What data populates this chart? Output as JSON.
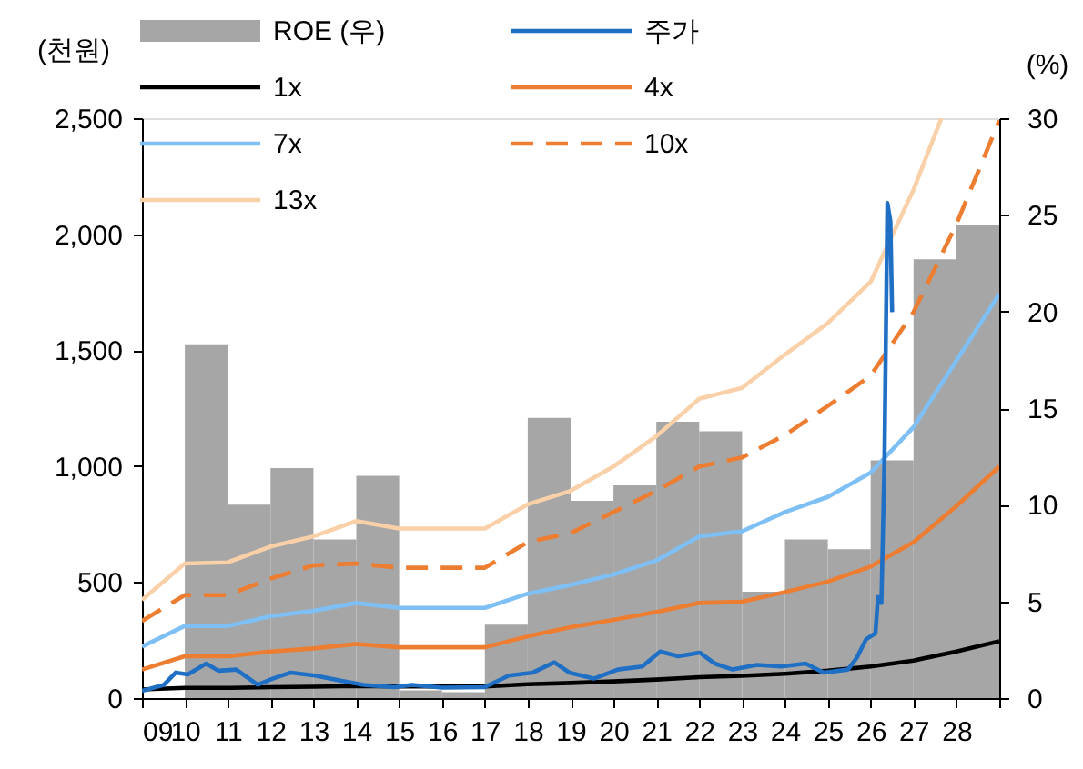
{
  "chart_data": {
    "type": "line",
    "ylabel": "(천원)",
    "y2label": "(%)",
    "legend": "top",
    "grid": false,
    "xlim": [
      2009,
      2029
    ],
    "xticks": [
      {
        "value": 2009,
        "label": "09"
      },
      {
        "value": 2010,
        "label": "10"
      },
      {
        "value": 2011,
        "label": "11"
      },
      {
        "value": 2012,
        "label": "12"
      },
      {
        "value": 2013,
        "label": "13"
      },
      {
        "value": 2014,
        "label": "14"
      },
      {
        "value": 2015,
        "label": "15"
      },
      {
        "value": 2016,
        "label": "16"
      },
      {
        "value": 2017,
        "label": "17"
      },
      {
        "value": 2018,
        "label": "18"
      },
      {
        "value": 2019,
        "label": "19"
      },
      {
        "value": 2020,
        "label": "20"
      },
      {
        "value": 2021,
        "label": "21"
      },
      {
        "value": 2022,
        "label": "22"
      },
      {
        "value": 2023,
        "label": "23"
      },
      {
        "value": 2024,
        "label": "24"
      },
      {
        "value": 2025,
        "label": "25"
      },
      {
        "value": 2026,
        "label": "26"
      },
      {
        "value": 2027,
        "label": "27"
      },
      {
        "value": 2028,
        "label": "28"
      },
      {
        "value": 2029,
        "label": null
      }
    ],
    "ylim": [
      0,
      2500
    ],
    "yticks": [
      {
        "value": 0,
        "label": "0"
      },
      {
        "value": 500,
        "label": "500"
      },
      {
        "value": 1000,
        "label": "1,000"
      },
      {
        "value": 1500,
        "label": "1,500"
      },
      {
        "value": 2000,
        "label": "2,000"
      },
      {
        "value": 2500,
        "label": "2,500"
      }
    ],
    "y2lim": [
      0,
      30
    ],
    "y2ticks": [
      0,
      5,
      10,
      15,
      20,
      25,
      30
    ],
    "series": [
      {
        "name": "ROE (우)",
        "type": "bar",
        "axis": "y2",
        "color": "#a6a6a6",
        "x": [
          2010.5,
          2011.5,
          2012.5,
          2013.5,
          2014.5,
          2015.5,
          2016.5,
          2017.5,
          2018.5,
          2019.5,
          2020.5,
          2021.5,
          2022.5,
          2023.5,
          2024.5,
          2025.5,
          2026.5,
          2027.5,
          2028.5
        ],
        "values": [
          18.3,
          10.0,
          11.9,
          8.2,
          11.5,
          0.4,
          0.3,
          3.8,
          14.5,
          10.2,
          11.0,
          14.3,
          13.8,
          5.5,
          8.2,
          7.7,
          12.3,
          22.7,
          24.5
        ]
      },
      {
        "name": "주가",
        "color": "#1f6fc5",
        "x": [
          2009.0,
          2009.51,
          2009.79,
          2010.07,
          2010.5,
          2010.78,
          2011.2,
          2011.7,
          2012.05,
          2012.47,
          2013.04,
          2013.6,
          2014.17,
          2014.88,
          2015.3,
          2016.0,
          2016.99,
          2017.56,
          2018.12,
          2018.62,
          2018.97,
          2019.54,
          2020.1,
          2020.67,
          2021.09,
          2021.51,
          2022.01,
          2022.36,
          2022.78,
          2023.35,
          2023.92,
          2024.48,
          2024.9,
          2025.47,
          2025.68,
          2025.89,
          2026.11,
          2026.17,
          2026.25,
          2026.32,
          2026.39,
          2026.46,
          2026.5
        ],
        "values": [
          31,
          57,
          110,
          102,
          149,
          118,
          123,
          57,
          84,
          110,
          97,
          76,
          57,
          47,
          57,
          45,
          47,
          97,
          110,
          154,
          110,
          84,
          123,
          136,
          201,
          180,
          196,
          149,
          123,
          143,
          136,
          149,
          110,
          123,
          175,
          253,
          279,
          436,
          410,
          1011,
          2134,
          2056,
          1664
        ]
      },
      {
        "name": "1x",
        "color": "#000000",
        "x": [
          2009,
          2010,
          2011,
          2012,
          2013,
          2014,
          2015,
          2016,
          2017,
          2018,
          2019,
          2020,
          2021,
          2022,
          2023,
          2024,
          2025,
          2026,
          2027,
          2028,
          2029
        ],
        "values": [
          37,
          44,
          44,
          47,
          49,
          52,
          50,
          50,
          50,
          60,
          65,
          72,
          80,
          90,
          96,
          105,
          118,
          136,
          162,
          201,
          245
        ]
      },
      {
        "name": "4x",
        "color": "#ed7d31",
        "x": [
          2009,
          2010,
          2011,
          2012,
          2013,
          2014,
          2015,
          2016,
          2017,
          2018,
          2019,
          2020,
          2021,
          2022,
          2023,
          2024,
          2025,
          2026,
          2027,
          2028,
          2029
        ],
        "values": [
          123,
          180,
          180,
          201,
          214,
          233,
          219,
          219,
          219,
          266,
          306,
          337,
          371,
          410,
          415,
          457,
          502,
          567,
          672,
          828,
          998
        ]
      },
      {
        "name": "7x",
        "color": "#7ec0f5",
        "x": [
          2009,
          2010,
          2011,
          2012,
          2013,
          2014,
          2015,
          2016,
          2017,
          2018,
          2019,
          2020,
          2021,
          2022,
          2023,
          2024,
          2025,
          2026,
          2027,
          2028,
          2029
        ],
        "values": [
          222,
          311,
          311,
          353,
          376,
          410,
          389,
          389,
          389,
          450,
          488,
          533,
          593,
          697,
          719,
          802,
          867,
          972,
          1168,
          1455,
          1742
        ]
      },
      {
        "name": "10x",
        "color": "#ed7d31",
        "line_style": "dashed",
        "x": [
          2009,
          2010,
          2011,
          2012,
          2013,
          2014,
          2015,
          2016,
          2017,
          2018,
          2019,
          2020,
          2021,
          2022,
          2023,
          2024,
          2025,
          2026,
          2027,
          2028,
          2029
        ],
        "values": [
          332,
          444,
          444,
          515,
          572,
          580,
          562,
          562,
          562,
          672,
          711,
          802,
          893,
          998,
          1037,
          1134,
          1259,
          1390,
          1664,
          2043,
          2490
        ]
      },
      {
        "name": "13x",
        "color": "#fad0a8",
        "x": [
          2009,
          2010,
          2011,
          2012,
          2013,
          2014,
          2015,
          2016,
          2017,
          2018,
          2019,
          2020,
          2021,
          2022,
          2023,
          2024,
          2025,
          2026,
          2027,
          2027.65
        ],
        "values": [
          423,
          580,
          585,
          653,
          697,
          763,
          731,
          731,
          731,
          835,
          893,
          998,
          1129,
          1290,
          1337,
          1481,
          1617,
          1795,
          2192,
          2500
        ]
      }
    ]
  }
}
